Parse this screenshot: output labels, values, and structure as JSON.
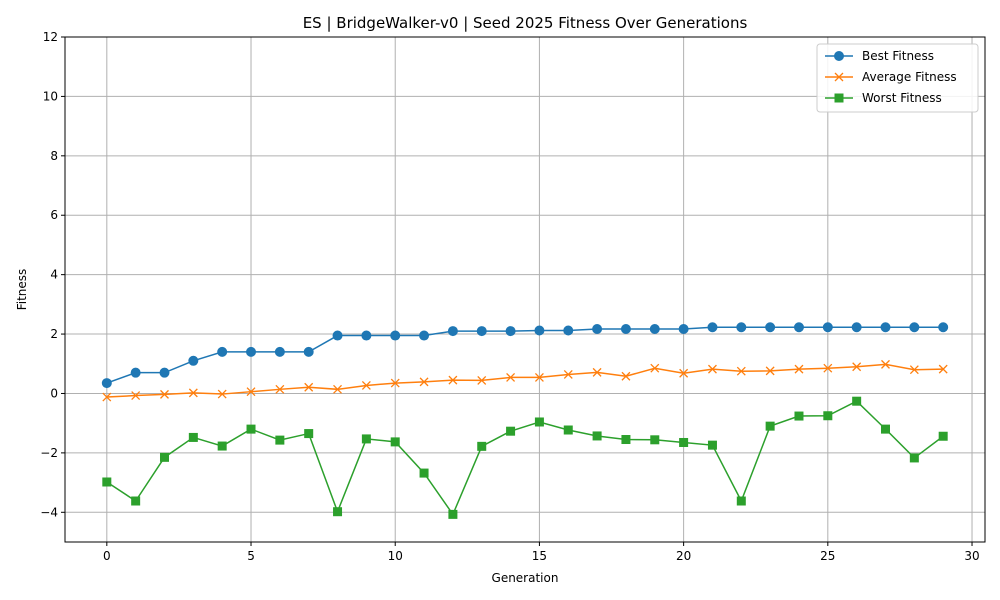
{
  "chart_data": {
    "type": "line",
    "title": "ES | BridgeWalker-v0 | Seed 2025 Fitness Over Generations",
    "xlabel": "Generation",
    "ylabel": "Fitness",
    "xlim": [
      -1.45,
      30.45
    ],
    "ylim": [
      -5,
      12
    ],
    "xticks": [
      0,
      5,
      10,
      15,
      20,
      25,
      30
    ],
    "yticks": [
      -4,
      -2,
      0,
      2,
      4,
      6,
      8,
      10,
      12
    ],
    "grid": true,
    "legend_position": "top-right",
    "x": [
      0,
      1,
      2,
      3,
      4,
      5,
      6,
      7,
      8,
      9,
      10,
      11,
      12,
      13,
      14,
      15,
      16,
      17,
      18,
      19,
      20,
      21,
      22,
      23,
      24,
      25,
      26,
      27,
      28,
      29
    ],
    "series": [
      {
        "name": "Best Fitness",
        "color": "#1f77b4",
        "marker": "circle",
        "values": [
          0.35,
          0.7,
          0.7,
          1.1,
          1.4,
          1.4,
          1.4,
          1.4,
          1.95,
          1.95,
          1.95,
          1.95,
          2.1,
          2.1,
          2.1,
          2.12,
          2.12,
          2.17,
          2.17,
          2.17,
          2.17,
          2.23,
          2.23,
          2.23,
          2.23,
          2.23,
          2.23,
          2.23,
          2.23,
          2.23
        ]
      },
      {
        "name": "Average Fitness",
        "color": "#ff7f0e",
        "marker": "x",
        "values": [
          -0.12,
          -0.07,
          -0.03,
          0.02,
          -0.02,
          0.06,
          0.14,
          0.21,
          0.14,
          0.27,
          0.35,
          0.39,
          0.45,
          0.44,
          0.54,
          0.54,
          0.64,
          0.71,
          0.58,
          0.85,
          0.68,
          0.82,
          0.75,
          0.76,
          0.82,
          0.85,
          0.9,
          0.98,
          0.8,
          0.82
        ]
      },
      {
        "name": "Worst Fitness",
        "color": "#2ca02c",
        "marker": "square",
        "values": [
          -2.98,
          -3.62,
          -2.15,
          -1.48,
          -1.77,
          -1.2,
          -1.57,
          -1.35,
          -3.98,
          -1.53,
          -1.63,
          -2.68,
          -4.07,
          -1.78,
          -1.27,
          -0.96,
          -1.23,
          -1.43,
          -1.55,
          -1.56,
          -1.65,
          -1.74,
          -3.62,
          -1.1,
          -0.76,
          -0.75,
          -0.26,
          -1.2,
          -2.17,
          -1.44
        ]
      }
    ]
  }
}
